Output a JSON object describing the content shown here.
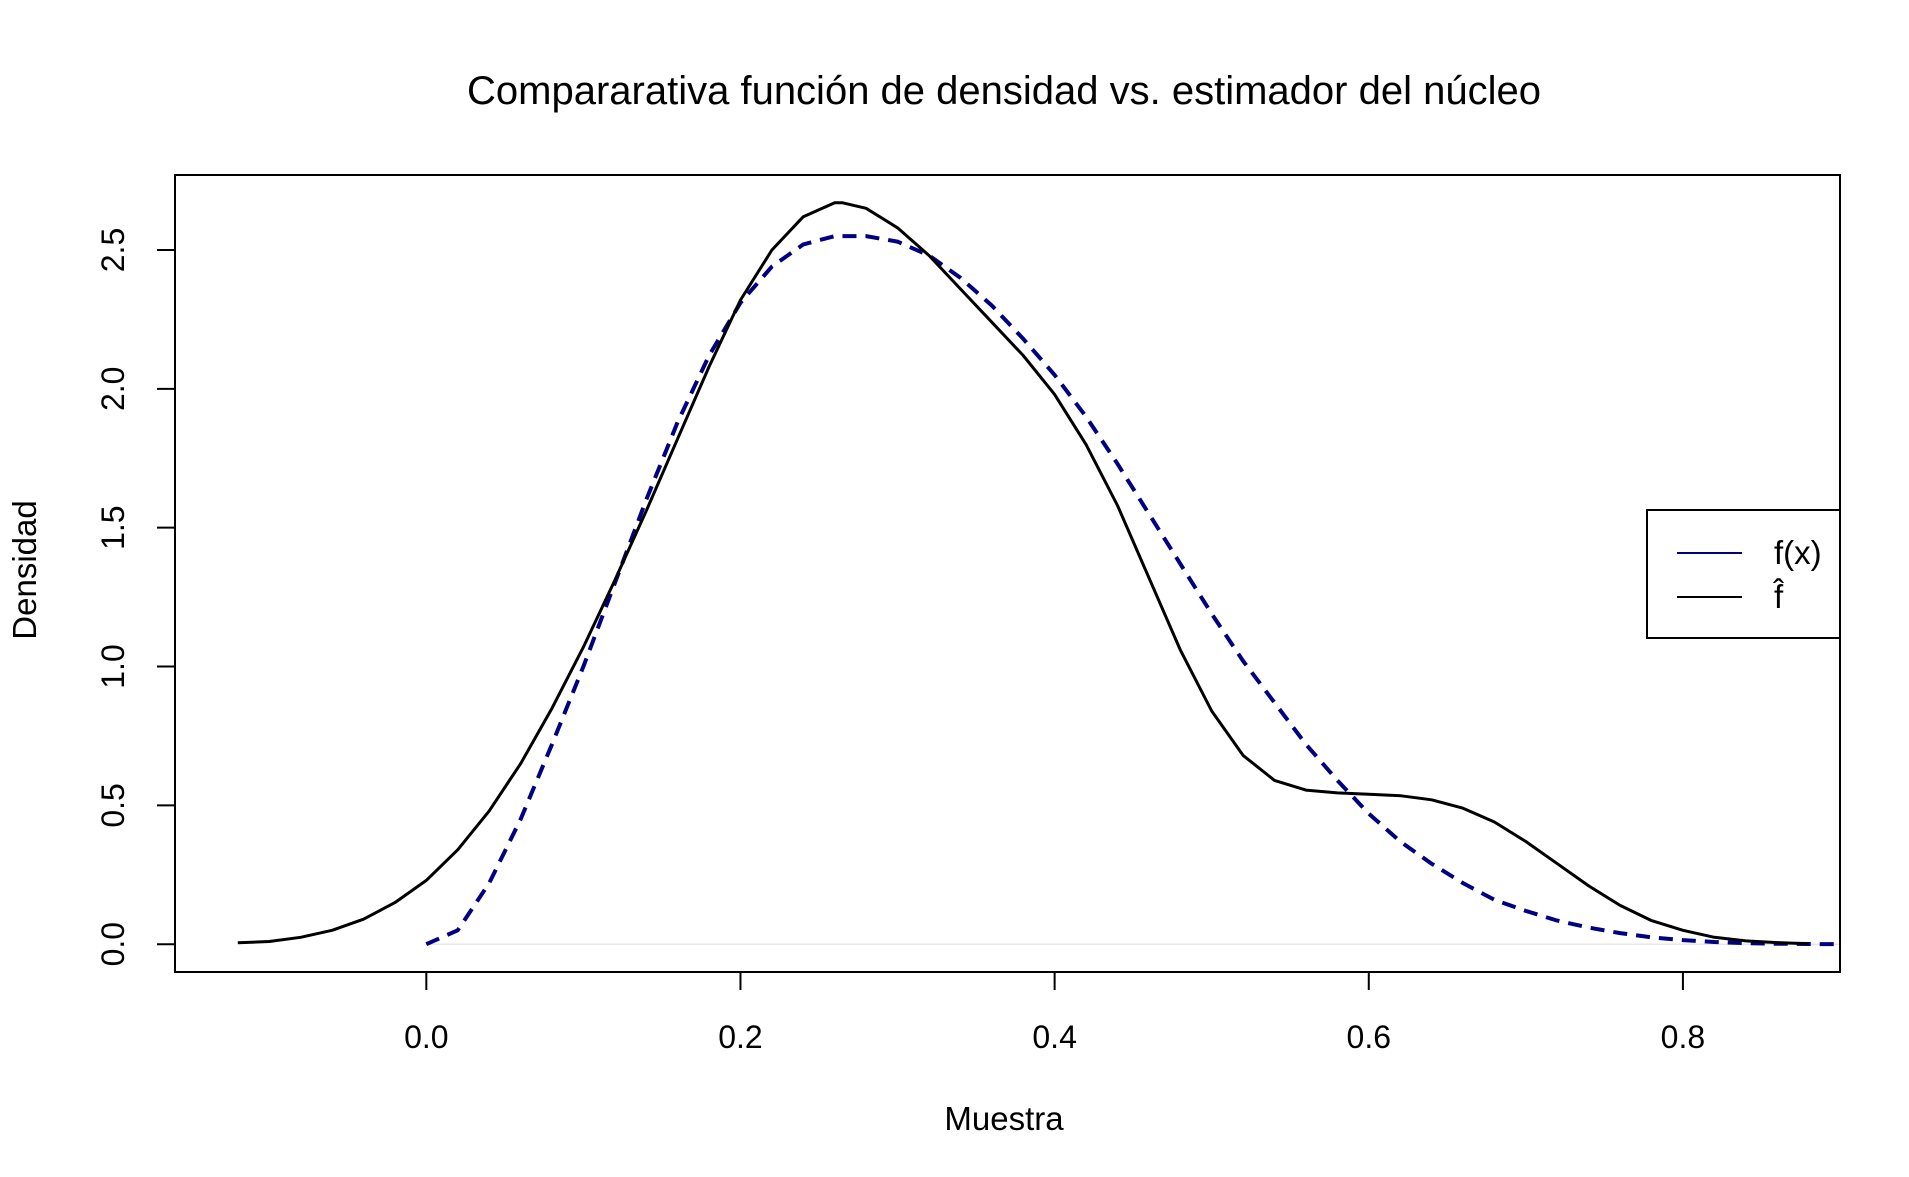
{
  "chart_data": {
    "type": "line",
    "title": "Compararativa función de densidad vs. estimador del núcleo",
    "xlabel": "Muestra",
    "ylabel": "Densidad",
    "xlim": [
      -0.16,
      0.9
    ],
    "ylim": [
      -0.1,
      2.77
    ],
    "x_ticks": [
      0.0,
      0.2,
      0.4,
      0.6,
      0.8
    ],
    "x_tick_labels": [
      "0.0",
      "0.2",
      "0.4",
      "0.6",
      "0.8"
    ],
    "y_ticks": [
      0.0,
      0.5,
      1.0,
      1.5,
      2.0,
      2.5
    ],
    "y_tick_labels": [
      "0.0",
      "0.5",
      "1.0",
      "1.5",
      "2.0",
      "2.5"
    ],
    "grid": false,
    "legend_position": "right",
    "series": [
      {
        "name": "f(x)",
        "color": "#000080",
        "style": "dashed",
        "legend_style": "solid",
        "x": [
          0.0,
          0.02,
          0.04,
          0.06,
          0.08,
          0.1,
          0.12,
          0.14,
          0.16,
          0.18,
          0.2,
          0.22,
          0.24,
          0.26,
          0.28,
          0.3,
          0.32,
          0.34,
          0.36,
          0.38,
          0.4,
          0.42,
          0.44,
          0.46,
          0.48,
          0.5,
          0.52,
          0.54,
          0.56,
          0.58,
          0.6,
          0.62,
          0.64,
          0.66,
          0.68,
          0.7,
          0.72,
          0.74,
          0.76,
          0.78,
          0.8,
          0.82,
          0.84,
          0.86,
          0.88,
          0.9
        ],
        "y": [
          0.0,
          0.05,
          0.22,
          0.45,
          0.72,
          1.0,
          1.3,
          1.6,
          1.88,
          2.12,
          2.31,
          2.44,
          2.52,
          2.55,
          2.55,
          2.53,
          2.48,
          2.4,
          2.3,
          2.18,
          2.05,
          1.9,
          1.73,
          1.55,
          1.37,
          1.19,
          1.02,
          0.87,
          0.72,
          0.59,
          0.47,
          0.37,
          0.29,
          0.22,
          0.16,
          0.12,
          0.085,
          0.06,
          0.04,
          0.025,
          0.015,
          0.008,
          0.004,
          0.002,
          0.001,
          0.0
        ]
      },
      {
        "name": "f̂",
        "color": "#000000",
        "style": "solid",
        "legend_style": "solid",
        "x": [
          -0.12,
          -0.1,
          -0.08,
          -0.06,
          -0.04,
          -0.02,
          0.0,
          0.02,
          0.04,
          0.06,
          0.08,
          0.1,
          0.12,
          0.14,
          0.16,
          0.18,
          0.2,
          0.22,
          0.24,
          0.26,
          0.265,
          0.28,
          0.3,
          0.32,
          0.34,
          0.36,
          0.38,
          0.4,
          0.42,
          0.44,
          0.46,
          0.48,
          0.5,
          0.52,
          0.54,
          0.56,
          0.58,
          0.6,
          0.62,
          0.64,
          0.66,
          0.68,
          0.7,
          0.72,
          0.74,
          0.76,
          0.78,
          0.8,
          0.82,
          0.84,
          0.86,
          0.88
        ],
        "y": [
          0.005,
          0.01,
          0.025,
          0.05,
          0.09,
          0.15,
          0.23,
          0.34,
          0.48,
          0.65,
          0.85,
          1.07,
          1.31,
          1.56,
          1.82,
          2.08,
          2.32,
          2.5,
          2.62,
          2.67,
          2.67,
          2.65,
          2.58,
          2.48,
          2.36,
          2.24,
          2.12,
          1.98,
          1.8,
          1.58,
          1.32,
          1.06,
          0.84,
          0.68,
          0.59,
          0.555,
          0.545,
          0.54,
          0.535,
          0.52,
          0.49,
          0.44,
          0.37,
          0.29,
          0.21,
          0.14,
          0.085,
          0.05,
          0.025,
          0.012,
          0.006,
          0.002
        ]
      }
    ]
  }
}
